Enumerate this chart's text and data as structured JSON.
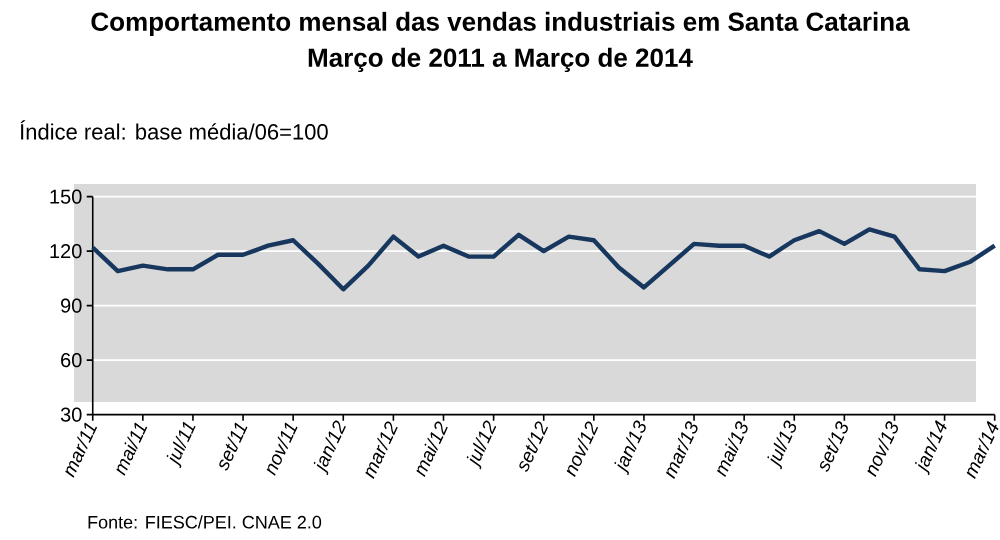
{
  "chart_data": {
    "type": "line",
    "title": "Comportamento mensal das vendas industriais em Santa Catarina",
    "subtitle": "Março de 2011 a Março de 2014",
    "ylabel": "Índice real: base média/06=100",
    "annotations": [
      "Fonte: FIESC/PEI. CNAE 2.0"
    ],
    "categories": [
      "mar/11",
      null,
      "mai/11",
      null,
      "jul/11",
      null,
      "set/11",
      null,
      "nov/11",
      null,
      "jan/12",
      null,
      "mar/12",
      null,
      "mai/12",
      null,
      "jul/12",
      null,
      "set/12",
      null,
      "nov/12",
      null,
      "jan/13",
      null,
      "mar/13",
      null,
      "mai/13",
      null,
      "jul/13",
      null,
      "set/13",
      null,
      "nov/13",
      null,
      "jan/14",
      null,
      "mar/14"
    ],
    "series": [
      {
        "color": "#17375e",
        "values": [
          122,
          109,
          112,
          110,
          110,
          118,
          118,
          123,
          126,
          113,
          99,
          112,
          128,
          117,
          123,
          117,
          117,
          129,
          120,
          128,
          126,
          111,
          100,
          112,
          124,
          123,
          123,
          117,
          126,
          131,
          124,
          132,
          128,
          110,
          109,
          114,
          123
        ]
      }
    ],
    "ylim": [
      30,
      150
    ],
    "yticks": [
      30,
      60,
      90,
      120,
      150
    ],
    "grid": "y"
  }
}
